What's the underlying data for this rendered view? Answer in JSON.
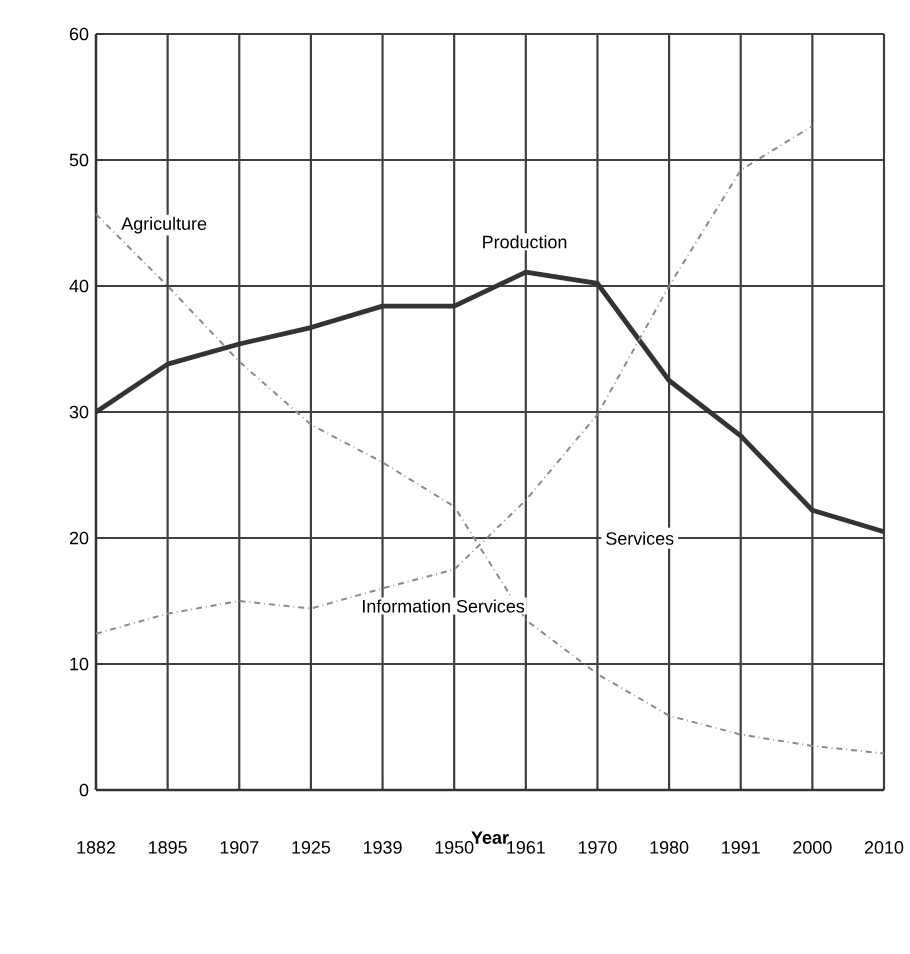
{
  "chart_data": {
    "type": "line",
    "xlabel": "Year",
    "categories": [
      "1882",
      "1895",
      "1907",
      "1925",
      "1939",
      "1950",
      "1961",
      "1970",
      "1980",
      "1991",
      "2000",
      "2010"
    ],
    "series": [
      {
        "name": "Agriculture",
        "color": "#8a8a8a",
        "line_style": "dashed",
        "values": [
          45.7,
          40,
          34,
          29,
          26,
          22.5,
          13.5,
          9.2,
          5.9,
          4.4,
          3.5,
          2.9
        ]
      },
      {
        "name": "Production",
        "color": "#333333",
        "line_style": "solid",
        "values": [
          30,
          33.8,
          35.4,
          36.7,
          38.4,
          38.4,
          41.1,
          40.2,
          32.5,
          28.1,
          22.2,
          20.5
        ]
      },
      {
        "name": "Information Services",
        "color": "#8a8a8a",
        "line_style": "dashed",
        "values": [
          12.4,
          14,
          15,
          14.4,
          16,
          17.5,
          23,
          29.8,
          40,
          49.2,
          52.7,
          null
        ]
      }
    ],
    "annotations": [
      "Services"
    ],
    "ylim": [
      0,
      60
    ],
    "yticks": [
      0,
      10,
      20,
      30,
      40,
      50,
      60
    ],
    "grid": true,
    "marker": "none"
  }
}
